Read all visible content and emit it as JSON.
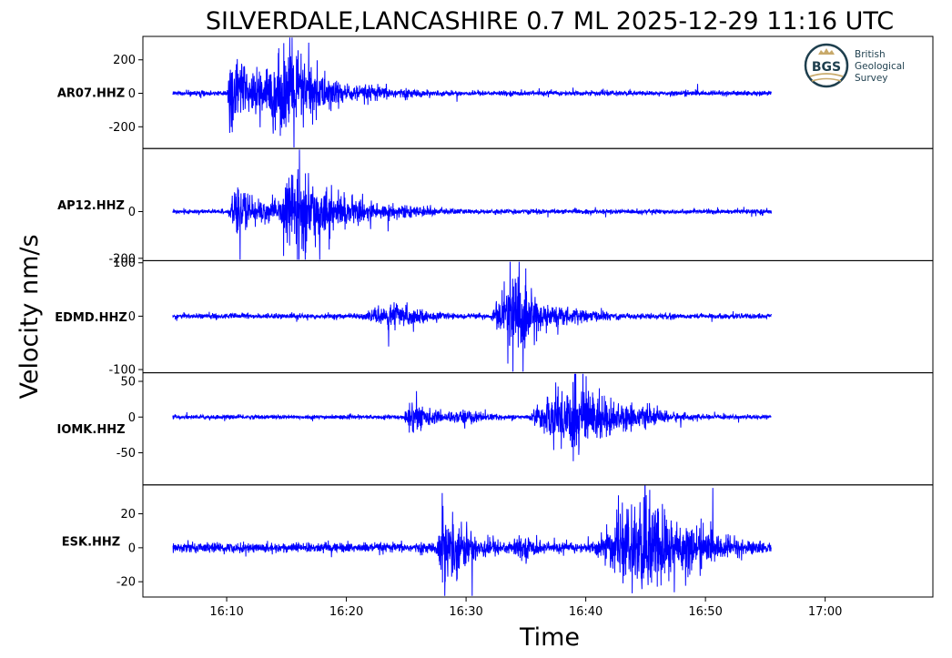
{
  "chart_data": {
    "type": "line",
    "title": "SILVERDALE,LANCASHIRE 0.7 ML   2025-12-29 11:16 UTC",
    "xlabel": "Time",
    "ylabel": "Velocity nm/s",
    "x_range": [
      "16:03",
      "17:09"
    ],
    "x_ticks": [
      "16:10",
      "16:20",
      "16:30",
      "16:40",
      "16:50",
      "17:00"
    ],
    "trace_color": "#0000ff",
    "grid": false,
    "series": [
      {
        "name": "AR07.HHZ",
        "ylim": [
          -330,
          340
        ],
        "y_ticks": [
          200,
          0,
          -200
        ],
        "y_tick_labels": [
          "200",
          "0",
          "-200"
        ],
        "noise": 15,
        "bursts": [
          {
            "start": "16:10",
            "peak": "16:10.3",
            "end": "16:18",
            "amp": 280
          },
          {
            "start": "16:11",
            "peak": "16:15.5",
            "end": "16:24",
            "amp": 310
          },
          {
            "start": "16:19",
            "peak": "16:22",
            "end": "16:35",
            "amp": 55
          }
        ]
      },
      {
        "name": "AP12.HHZ",
        "ylim": [
          -210,
          270
        ],
        "y_ticks": [
          0,
          -200
        ],
        "y_tick_labels": [
          "0",
          "-200"
        ],
        "noise": 10,
        "bursts": [
          {
            "start": "16:10",
            "peak": "16:11",
            "end": "16:20",
            "amp": 110
          },
          {
            "start": "16:14",
            "peak": "16:15.5",
            "end": "16:28",
            "amp": 200
          },
          {
            "start": "16:20",
            "peak": "16:22",
            "end": "16:40",
            "amp": 45
          }
        ]
      },
      {
        "name": "EDMD.HHZ",
        "ylim": [
          -106,
          104
        ],
        "y_ticks": [
          100,
          0,
          -100
        ],
        "y_tick_labels": [
          "100",
          "0",
          "-100"
        ],
        "noise": 5,
        "bursts": [
          {
            "start": "16:21",
            "peak": "16:24",
            "end": "16:32",
            "amp": 30
          },
          {
            "start": "16:32",
            "peak": "16:34",
            "end": "16:40",
            "amp": 98
          },
          {
            "start": "16:34",
            "peak": "16:37",
            "end": "16:52",
            "amp": 22
          }
        ]
      },
      {
        "name": "IOMK.HHZ",
        "ylim": [
          -95,
          62
        ],
        "y_ticks": [
          50,
          0,
          -50
        ],
        "y_tick_labels": [
          "50",
          "0",
          "-50"
        ],
        "noise": 3,
        "bursts": [
          {
            "start": "16:24.8",
            "peak": "16:25.2",
            "end": "16:31",
            "amp": 30
          },
          {
            "start": "16:26",
            "peak": "16:30",
            "end": "16:37",
            "amp": 12
          },
          {
            "start": "16:35",
            "peak": "16:39",
            "end": "16:50",
            "amp": 62
          },
          {
            "start": "16:40",
            "peak": "16:45",
            "end": "16:55",
            "amp": 15
          }
        ]
      },
      {
        "name": "ESK.HHZ",
        "ylim": [
          -29,
          37
        ],
        "y_ticks": [
          20,
          0,
          -20
        ],
        "y_tick_labels": [
          "20",
          "0",
          "-20"
        ],
        "noise": 3,
        "bursts": [
          {
            "start": "16:27.5",
            "peak": "16:28",
            "end": "16:36",
            "amp": 26
          },
          {
            "start": "16:30",
            "peak": "16:35",
            "end": "16:42",
            "amp": 7
          },
          {
            "start": "16:40",
            "peak": "16:45.3",
            "end": "16:58",
            "amp": 33
          }
        ]
      }
    ],
    "data_start": "16:05.5",
    "data_end": "16:55.5"
  },
  "logo": {
    "abbr": "BGS",
    "lines": [
      "British",
      "Geological",
      "Survey"
    ],
    "color": "#1e3f4e",
    "accent": "#c8a96a"
  }
}
